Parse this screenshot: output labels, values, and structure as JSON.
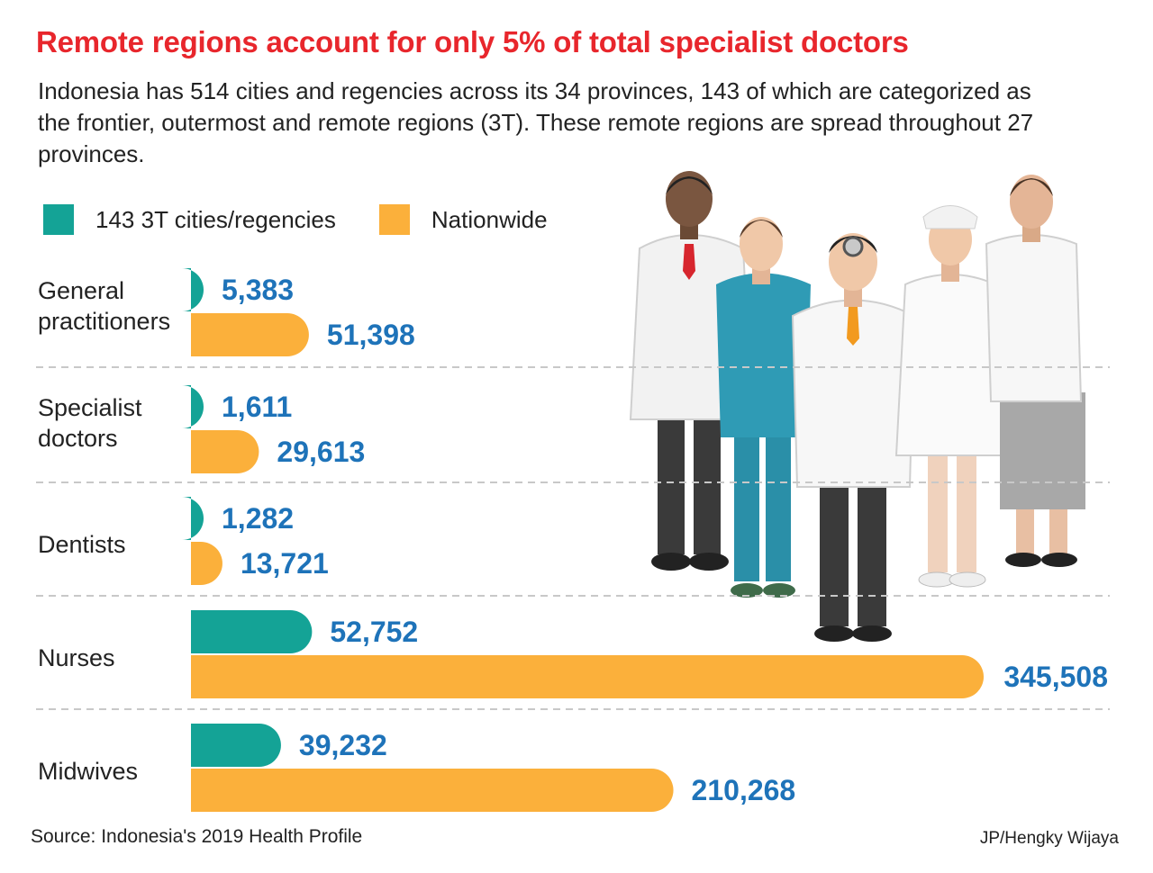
{
  "header": {
    "title": "Remote regions account for only 5% of total specialist doctors",
    "subtitle": "Indonesia has 514 cities and regencies across its 34 provinces, 143 of which are categorized as the frontier, outermost and remote regions (3T). These remote regions are spread throughout 27 provinces."
  },
  "chart_data": {
    "type": "bar",
    "orientation": "horizontal",
    "categories": [
      "General practitioners",
      "Specialist doctors",
      "Dentists",
      "Nurses",
      "Midwives"
    ],
    "series": [
      {
        "name": "143 3T cities/regencies",
        "color": "#14a396",
        "values": [
          5383,
          1611,
          1282,
          52752,
          39232
        ],
        "value_labels": [
          "5,383",
          "1,611",
          "1,282",
          "52,752",
          "39,232"
        ]
      },
      {
        "name": "Nationwide",
        "color": "#fbb03b",
        "values": [
          51398,
          29613,
          13721,
          345508,
          210268
        ],
        "value_labels": [
          "51,398",
          "29,613",
          "13,721",
          "345,508",
          "210,268"
        ]
      }
    ],
    "xlim": [
      0,
      345508
    ],
    "legend": "top-left",
    "grid": false,
    "value_label_color": "#1e73b9"
  },
  "footer": {
    "source": "Source: Indonesia's 2019 Health Profile",
    "credit": "JP/Hengky Wijaya"
  },
  "illustration": {
    "icon": "medical-staff-group-illustration"
  }
}
